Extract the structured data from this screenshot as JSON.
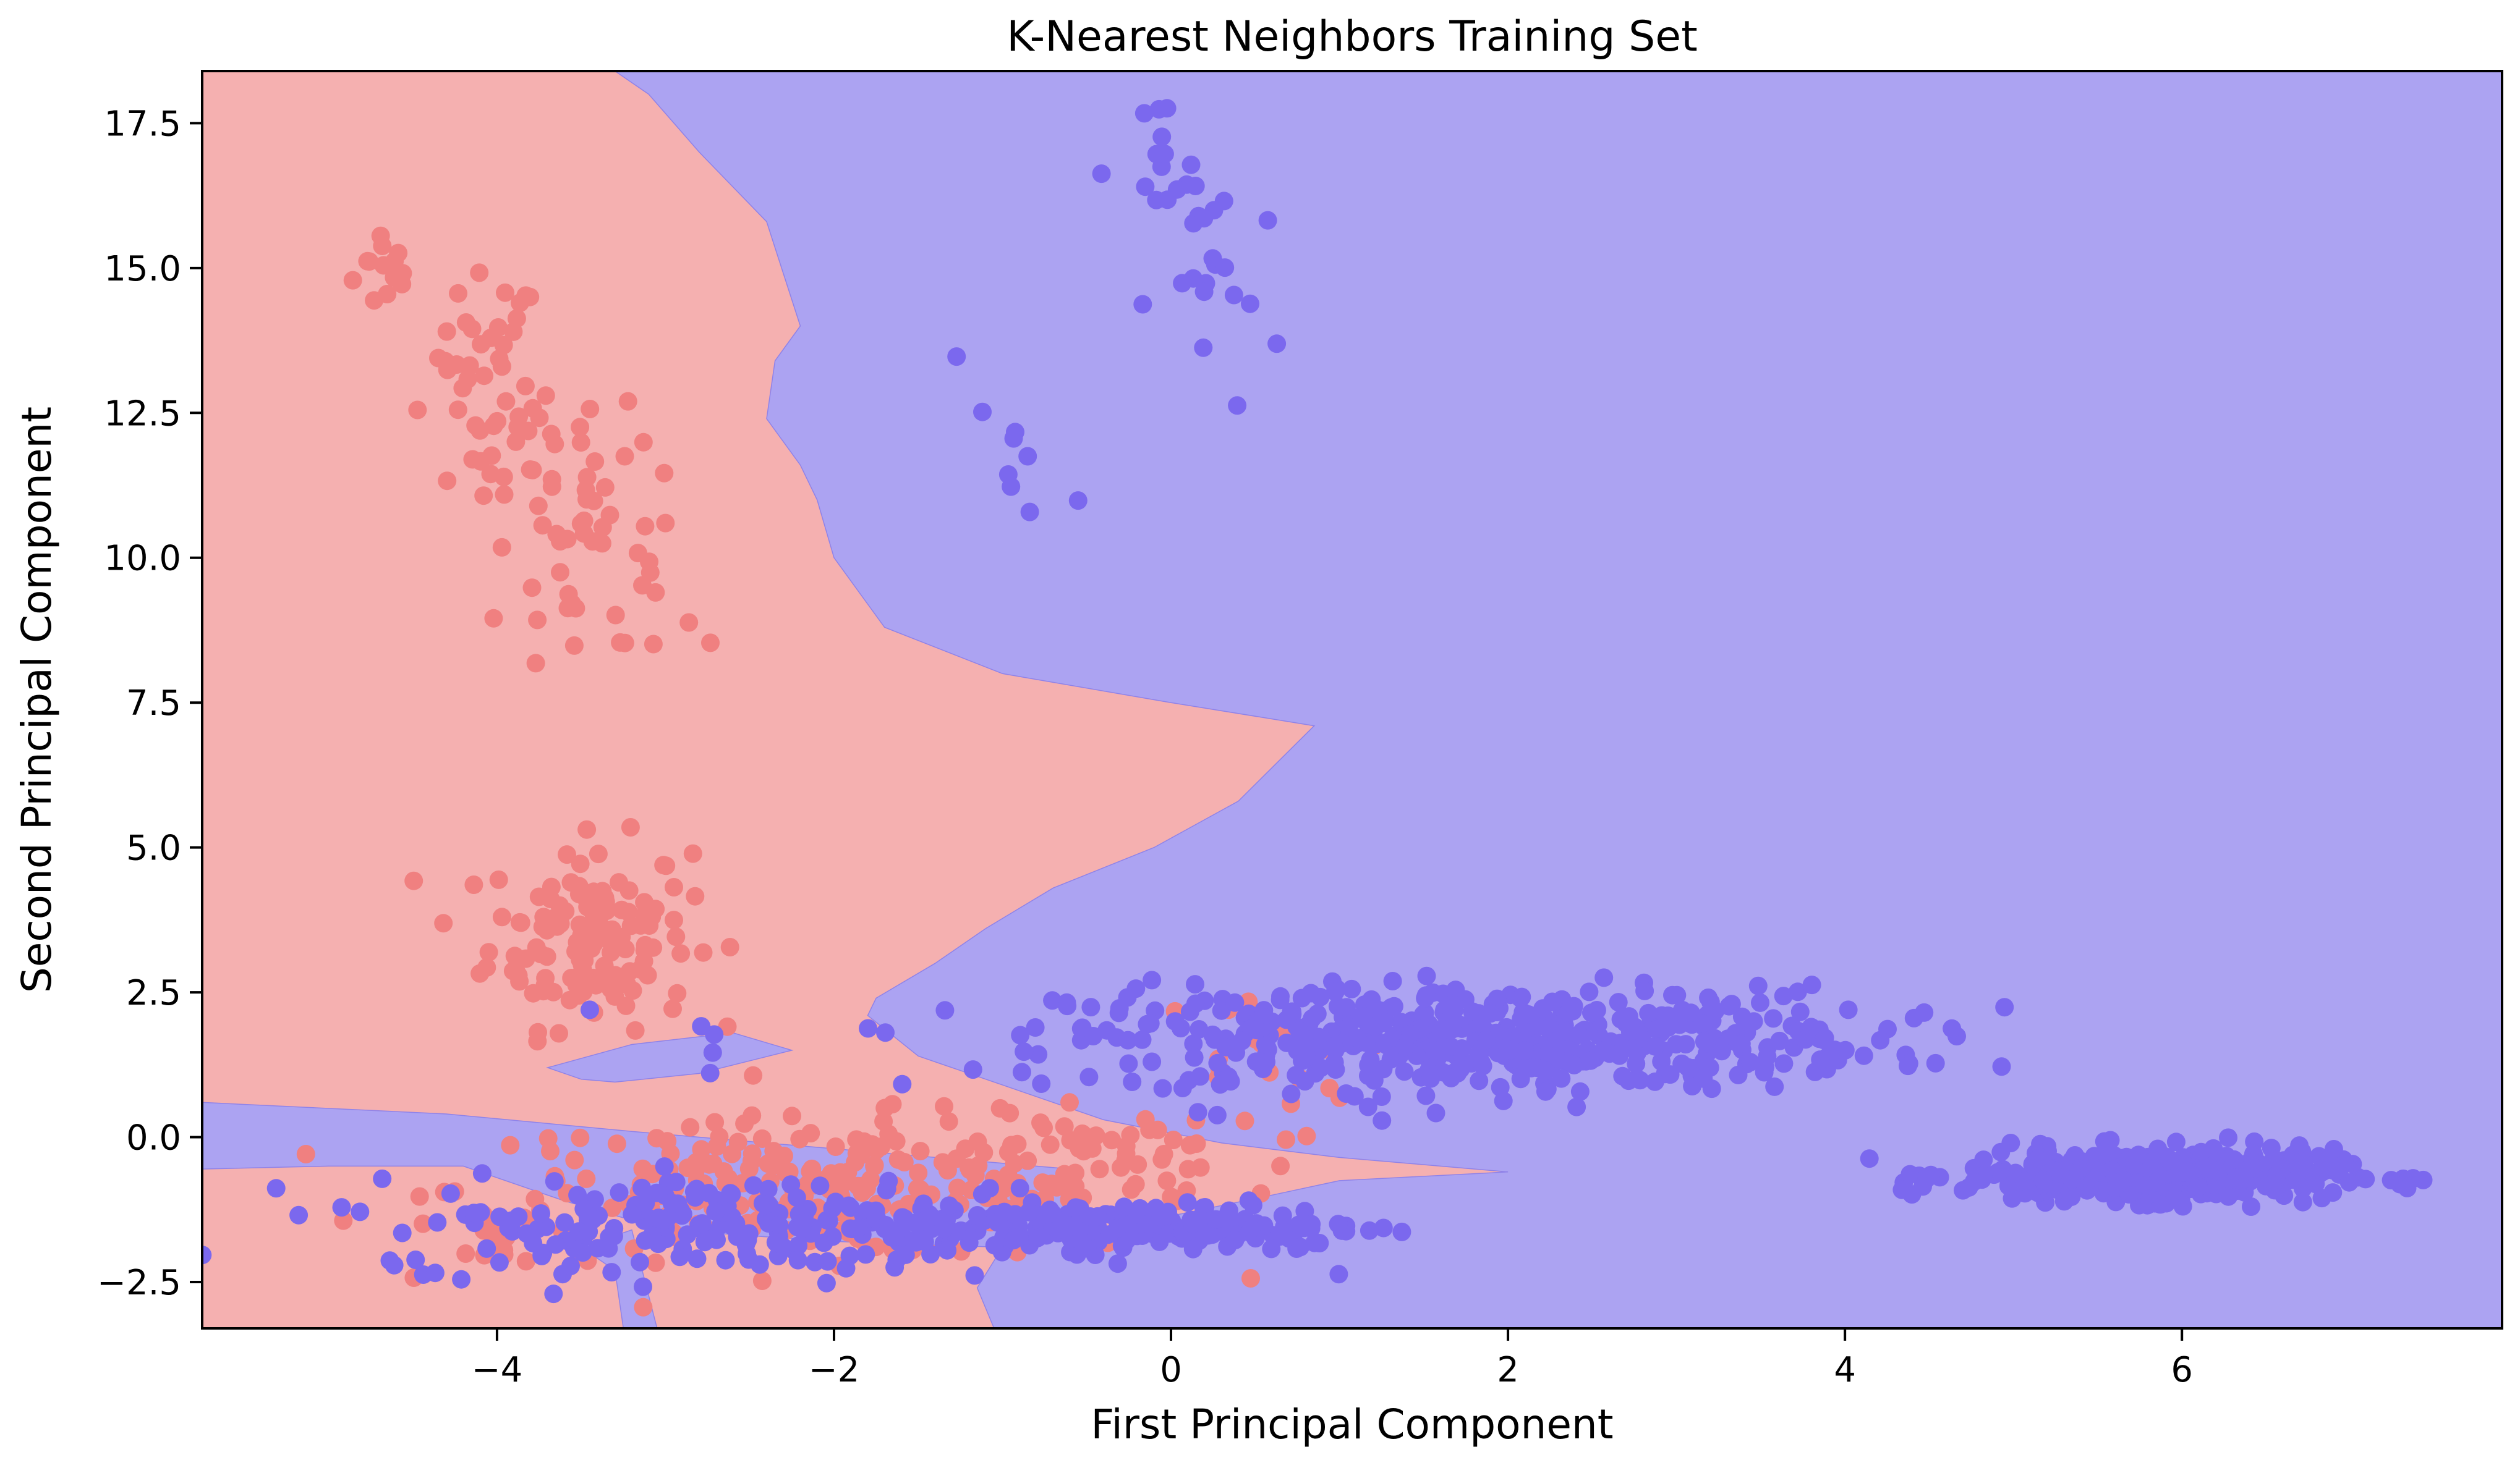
{
  "chart_data": {
    "type": "scatter",
    "title": "K-Nearest Neighbors Training Set",
    "xlabel": "First Principal Component",
    "ylabel": "Second Principal Component",
    "xlim": [
      -5.75,
      7.9
    ],
    "ylim": [
      -3.3,
      18.4
    ],
    "x_ticks": [
      -4,
      -2,
      0,
      2,
      4,
      6
    ],
    "x_tick_labels": [
      "−4",
      "−2",
      "0",
      "2",
      "4",
      "6"
    ],
    "y_ticks": [
      -2.5,
      0.0,
      2.5,
      5.0,
      7.5,
      10.0,
      12.5,
      15.0,
      17.5
    ],
    "y_tick_labels": [
      "−2.5",
      "0.0",
      "2.5",
      "5.0",
      "7.5",
      "10.0",
      "12.5",
      "15.0",
      "17.5"
    ],
    "grid": false,
    "legend": "none",
    "colors": {
      "class0_point": "#f08080",
      "class1_point": "#7b68ee",
      "class0_region": "#f5b0b0",
      "class1_region": "#aca3f2"
    },
    "series": [
      {
        "class": 0,
        "clusters": [
          {
            "center": [
              -4.65,
              15.0
            ],
            "spread": [
              0.1,
              0.4
            ],
            "count": 14
          },
          {
            "center": [
              -4.05,
              13.5
            ],
            "spread": [
              0.15,
              0.7
            ],
            "count": 30
          },
          {
            "center": [
              -3.75,
              11.8
            ],
            "spread": [
              0.35,
              0.6
            ],
            "count": 36
          },
          {
            "center": [
              -3.45,
              10.0
            ],
            "spread": [
              0.3,
              0.7
            ],
            "count": 30
          },
          {
            "center": [
              -3.3,
              8.6
            ],
            "spread": [
              0.3,
              0.3
            ],
            "count": 8
          },
          {
            "center": [
              -3.45,
              3.5
            ],
            "spread": [
              0.3,
              0.8
            ],
            "count": 140
          },
          {
            "center": [
              -2.0,
              -0.9
            ],
            "spread": [
              1.1,
              0.6
            ],
            "count": 260
          },
          {
            "center": [
              -0.3,
              -0.3
            ],
            "spread": [
              0.35,
              0.4
            ],
            "count": 30
          },
          {
            "center": [
              0.5,
              1.3
            ],
            "spread": [
              0.3,
              0.6
            ],
            "count": 20
          },
          {
            "center": [
              -4.0,
              -1.8
            ],
            "spread": [
              0.08,
              0.2
            ],
            "count": 12
          }
        ]
      },
      {
        "class": 1,
        "clusters": [
          {
            "center": [
              -0.1,
              16.6
            ],
            "spread": [
              0.15,
              0.7
            ],
            "count": 12
          },
          {
            "center": [
              0.25,
              14.8
            ],
            "spread": [
              0.2,
              1.2
            ],
            "count": 22
          },
          {
            "center": [
              -0.9,
              11.5
            ],
            "spread": [
              0.2,
              1.2
            ],
            "count": 8
          },
          {
            "center": [
              -1.3,
              13.5
            ],
            "spread": [
              0.05,
              0.05
            ],
            "count": 1
          },
          {
            "center": [
              1.8,
              1.7
            ],
            "spread": [
              1.2,
              0.45
            ],
            "count": 520
          },
          {
            "center": [
              5.8,
              -0.65
            ],
            "spread": [
              0.55,
              0.22
            ],
            "count": 420
          },
          {
            "center": [
              -0.2,
              -1.55
            ],
            "spread": [
              0.7,
              0.2
            ],
            "count": 180
          },
          {
            "center": [
              -2.4,
              -1.5
            ],
            "spread": [
              1.2,
              0.4
            ],
            "count": 260
          },
          {
            "center": [
              -3.4,
              2.2
            ],
            "spread": [
              0.05,
              0.05
            ],
            "count": 1
          },
          {
            "center": [
              -2.7,
              1.4
            ],
            "spread": [
              0.05,
              0.4
            ],
            "count": 3
          }
        ]
      }
    ],
    "decision_regions": {
      "class1_main": [
        [
          -3.3,
          18.4
        ],
        [
          7.9,
          18.4
        ],
        [
          7.9,
          -3.3
        ],
        [
          -1.05,
          -3.3
        ],
        [
          -1.15,
          -2.6
        ],
        [
          -1.0,
          -1.9
        ],
        [
          -0.4,
          -1.6
        ],
        [
          0.6,
          -1.0
        ],
        [
          1.0,
          -0.75
        ],
        [
          2.0,
          -0.6
        ],
        [
          1.0,
          -0.35
        ],
        [
          0.3,
          -0.1
        ],
        [
          -0.4,
          0.3
        ],
        [
          -1.0,
          0.9
        ],
        [
          -1.5,
          1.4
        ],
        [
          -1.8,
          2.1
        ],
        [
          -1.75,
          2.4
        ],
        [
          -1.4,
          3.0
        ],
        [
          -1.1,
          3.6
        ],
        [
          -0.7,
          4.3
        ],
        [
          -0.1,
          5.0
        ],
        [
          0.4,
          5.8
        ],
        [
          0.85,
          7.1
        ],
        [
          0.0,
          7.5
        ],
        [
          -1.0,
          8.0
        ],
        [
          -1.7,
          8.8
        ],
        [
          -2.0,
          10.0
        ],
        [
          -2.1,
          11.0
        ],
        [
          -2.2,
          11.6
        ],
        [
          -2.4,
          12.4
        ],
        [
          -2.35,
          13.4
        ],
        [
          -2.2,
          14.0
        ],
        [
          -2.3,
          14.9
        ],
        [
          -2.4,
          15.8
        ],
        [
          -2.8,
          17.0
        ],
        [
          -3.1,
          18.0
        ]
      ],
      "class1_band": [
        [
          -5.75,
          0.6
        ],
        [
          -4.3,
          0.4
        ],
        [
          -3.2,
          0.1
        ],
        [
          -2.0,
          -0.2
        ],
        [
          -1.2,
          -0.4
        ],
        [
          -0.6,
          -0.55
        ],
        [
          -0.6,
          -1.6
        ],
        [
          -1.0,
          -1.9
        ],
        [
          -2.0,
          -1.8
        ],
        [
          -3.0,
          -1.6
        ],
        [
          -3.6,
          -1.1
        ],
        [
          -4.2,
          -0.5
        ],
        [
          -5.0,
          -0.5
        ],
        [
          -5.75,
          -0.55
        ]
      ],
      "class1_lobe": [
        [
          -3.7,
          1.2
        ],
        [
          -3.2,
          1.6
        ],
        [
          -2.6,
          1.8
        ],
        [
          -2.25,
          1.5
        ],
        [
          -2.8,
          1.1
        ],
        [
          -3.3,
          0.95
        ],
        [
          -3.5,
          1.0
        ]
      ],
      "class1_notch": [
        [
          -3.2,
          -1.6
        ],
        [
          -3.05,
          -3.3
        ],
        [
          -3.25,
          -3.3
        ],
        [
          -3.3,
          -2.3
        ],
        [
          -3.5,
          -1.9
        ]
      ]
    }
  }
}
